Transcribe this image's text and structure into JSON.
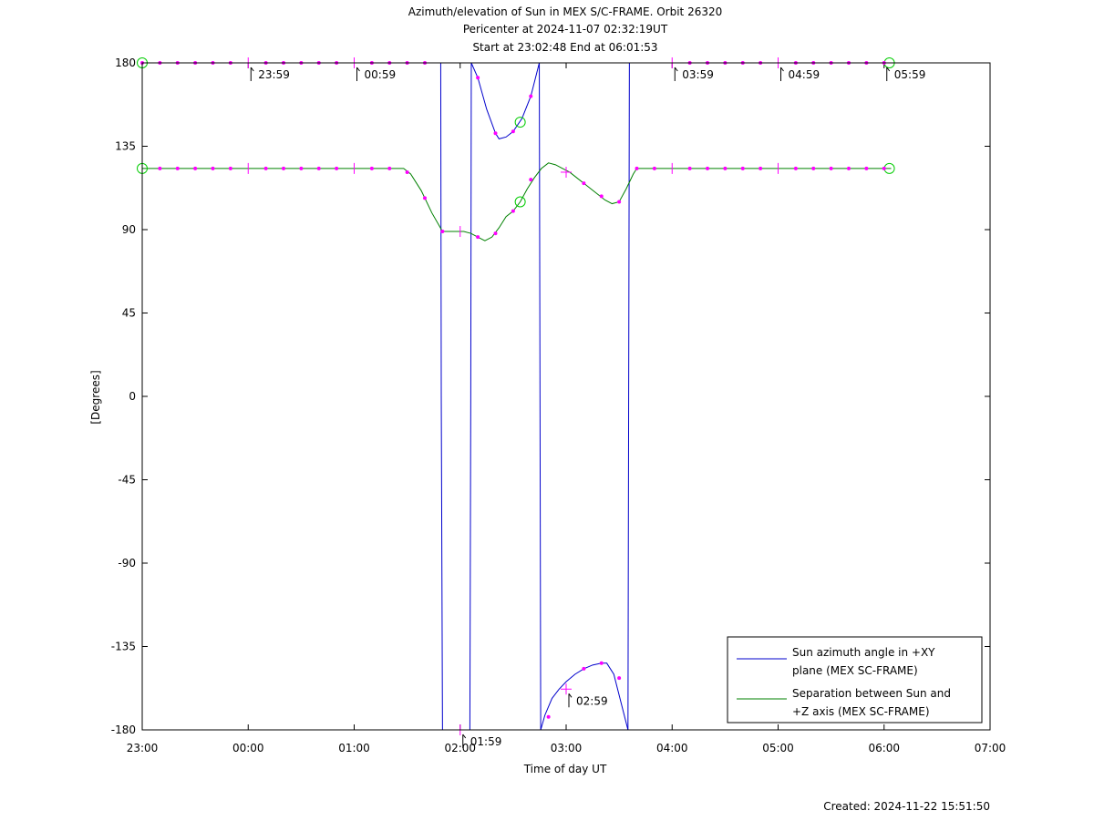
{
  "chart_data": {
    "type": "line",
    "title_lines": [
      "Azimuth/elevation of Sun in MEX S/C-FRAME.  Orbit 26320",
      "Pericenter at 2024-11-07 02:32:19UT",
      "Start at 23:02:48 End at 06:01:53"
    ],
    "xlabel": "Time of day UT",
    "ylabel": "[Degrees]",
    "footer": "Created: 2024-11-22 15:51:50",
    "xlim": [
      -60,
      420
    ],
    "ylim": [
      -180,
      180
    ],
    "xticks": [
      {
        "value": -60,
        "label": "23:00"
      },
      {
        "value": 0,
        "label": "00:00"
      },
      {
        "value": 60,
        "label": "01:00"
      },
      {
        "value": 120,
        "label": "02:00"
      },
      {
        "value": 180,
        "label": "03:00"
      },
      {
        "value": 240,
        "label": "04:00"
      },
      {
        "value": 300,
        "label": "05:00"
      },
      {
        "value": 360,
        "label": "06:00"
      },
      {
        "value": 420,
        "label": "07:00"
      }
    ],
    "yticks": [
      {
        "value": 180,
        "label": "180"
      },
      {
        "value": 135,
        "label": "135"
      },
      {
        "value": 90,
        "label": "90"
      },
      {
        "value": 45,
        "label": "45"
      },
      {
        "value": 0,
        "label": "0"
      },
      {
        "value": -45,
        "label": "-45"
      },
      {
        "value": -90,
        "label": "-90"
      },
      {
        "value": -135,
        "label": "-135"
      },
      {
        "value": -180,
        "label": "-180"
      }
    ],
    "legend": {
      "position": "bottom-right"
    },
    "series": [
      {
        "name": "Sun azimuth angle in +XY plane (MEX SC-FRAME)",
        "name_lines": [
          "Sun azimuth angle in +XY",
          "plane (MEX SC-FRAME)"
        ],
        "color": "#0000cc",
        "segments": [
          [
            [
              -60,
              180
            ],
            [
              109,
              180
            ],
            [
              109.3,
              0
            ],
            [
              110,
              -180
            ],
            [
              125.5,
              -180
            ],
            [
              126,
              0
            ],
            [
              126.3,
              180
            ]
          ],
          [
            [
              126.3,
              180
            ],
            [
              130,
              172
            ],
            [
              135,
              155
            ],
            [
              140,
              142
            ],
            [
              142,
              139
            ],
            [
              146,
              140
            ],
            [
              150,
              143
            ],
            [
              155,
              150
            ],
            [
              160,
              162
            ],
            [
              164,
              177
            ],
            [
              164.8,
              180
            ]
          ],
          [
            [
              164.8,
              180
            ],
            [
              165.2,
              0
            ],
            [
              165.6,
              -180
            ]
          ],
          [
            [
              165.6,
              -180
            ],
            [
              168,
              -172
            ],
            [
              172,
              -163
            ],
            [
              176,
              -158
            ],
            [
              180,
              -154
            ],
            [
              185,
              -150
            ],
            [
              190,
              -147
            ],
            [
              195,
              -145
            ],
            [
              200,
              -144
            ],
            [
              203,
              -144
            ],
            [
              207,
              -150
            ],
            [
              211,
              -165
            ],
            [
              215,
              -180
            ]
          ],
          [
            [
              215,
              -180
            ],
            [
              215.4,
              0
            ],
            [
              215.8,
              180
            ],
            [
              364,
              180
            ]
          ]
        ]
      },
      {
        "name": "Separation between Sun and +Z axis (MEX SC-FRAME)",
        "name_lines": [
          "Separation between Sun and",
          "+Z axis (MEX SC-FRAME)"
        ],
        "color": "#008000",
        "points": [
          [
            -60,
            123
          ],
          [
            88,
            123
          ],
          [
            92,
            120
          ],
          [
            98,
            111
          ],
          [
            104,
            99
          ],
          [
            110,
            89
          ],
          [
            116,
            89
          ],
          [
            122,
            89
          ],
          [
            126,
            88
          ],
          [
            130,
            86
          ],
          [
            134,
            84
          ],
          [
            138,
            86
          ],
          [
            142,
            91
          ],
          [
            146,
            97
          ],
          [
            150,
            100
          ],
          [
            154,
            105
          ],
          [
            158,
            112
          ],
          [
            162,
            118
          ],
          [
            166,
            123
          ],
          [
            170,
            126
          ],
          [
            174,
            125
          ],
          [
            178,
            123
          ],
          [
            182,
            121
          ],
          [
            186,
            118
          ],
          [
            190,
            115
          ],
          [
            194,
            112
          ],
          [
            198,
            109
          ],
          [
            202,
            106
          ],
          [
            206,
            104
          ],
          [
            210,
            105
          ],
          [
            214,
            112
          ],
          [
            218,
            120
          ],
          [
            220,
            123
          ],
          [
            364,
            123
          ]
        ]
      }
    ],
    "markers": {
      "dots": [
        [
          -60,
          180
        ],
        [
          -50,
          180
        ],
        [
          -40,
          180
        ],
        [
          -30,
          180
        ],
        [
          -20,
          180
        ],
        [
          -10,
          180
        ],
        [
          10,
          180
        ],
        [
          20,
          180
        ],
        [
          30,
          180
        ],
        [
          40,
          180
        ],
        [
          50,
          180
        ],
        [
          70,
          180
        ],
        [
          80,
          180
        ],
        [
          90,
          180
        ],
        [
          100,
          180
        ],
        [
          130,
          172
        ],
        [
          140,
          142
        ],
        [
          150,
          143
        ],
        [
          160,
          162
        ],
        [
          250,
          180
        ],
        [
          260,
          180
        ],
        [
          270,
          180
        ],
        [
          280,
          180
        ],
        [
          290,
          180
        ],
        [
          310,
          180
        ],
        [
          320,
          180
        ],
        [
          330,
          180
        ],
        [
          340,
          180
        ],
        [
          350,
          180
        ],
        [
          360,
          180
        ],
        [
          -50,
          123
        ],
        [
          -40,
          123
        ],
        [
          -30,
          123
        ],
        [
          -20,
          123
        ],
        [
          -10,
          123
        ],
        [
          10,
          123
        ],
        [
          20,
          123
        ],
        [
          30,
          123
        ],
        [
          40,
          123
        ],
        [
          50,
          123
        ],
        [
          70,
          123
        ],
        [
          80,
          123
        ],
        [
          90,
          121
        ],
        [
          100,
          107
        ],
        [
          110,
          89
        ],
        [
          130,
          86
        ],
        [
          140,
          88
        ],
        [
          150,
          100
        ],
        [
          160,
          117
        ],
        [
          190,
          115
        ],
        [
          200,
          108
        ],
        [
          210,
          105
        ],
        [
          220,
          123
        ],
        [
          230,
          123
        ],
        [
          250,
          123
        ],
        [
          260,
          123
        ],
        [
          270,
          123
        ],
        [
          280,
          123
        ],
        [
          290,
          123
        ],
        [
          310,
          123
        ],
        [
          320,
          123
        ],
        [
          330,
          123
        ],
        [
          340,
          123
        ],
        [
          350,
          123
        ],
        [
          360,
          123
        ],
        [
          170,
          -173
        ],
        [
          190,
          -147
        ],
        [
          200,
          -144
        ],
        [
          210,
          -152
        ]
      ],
      "hour_ticks": [
        [
          0,
          180
        ],
        [
          60,
          180
        ],
        [
          240,
          180
        ],
        [
          300,
          180
        ],
        [
          0,
          123
        ],
        [
          60,
          123
        ],
        [
          120,
          89
        ],
        [
          240,
          123
        ],
        [
          300,
          123
        ]
      ],
      "plus": [
        [
          180,
          121
        ],
        [
          180,
          -158
        ],
        [
          120,
          -180
        ]
      ],
      "circles": [
        [
          -60,
          180
        ],
        [
          363,
          180
        ],
        [
          -60,
          123
        ],
        [
          363,
          123
        ],
        [
          154,
          148
        ],
        [
          154,
          105
        ]
      ]
    },
    "time_labels": [
      {
        "x": 0,
        "y": 180,
        "label": "23:59"
      },
      {
        "x": 60,
        "y": 180,
        "label": "00:59"
      },
      {
        "x": 240,
        "y": 180,
        "label": "03:59"
      },
      {
        "x": 300,
        "y": 180,
        "label": "04:59"
      },
      {
        "x": 360,
        "y": 180,
        "label": "05:59"
      },
      {
        "x": 180,
        "y": -158,
        "label": "02:59"
      },
      {
        "x": 120,
        "y": -180,
        "label": "01:59"
      }
    ]
  }
}
